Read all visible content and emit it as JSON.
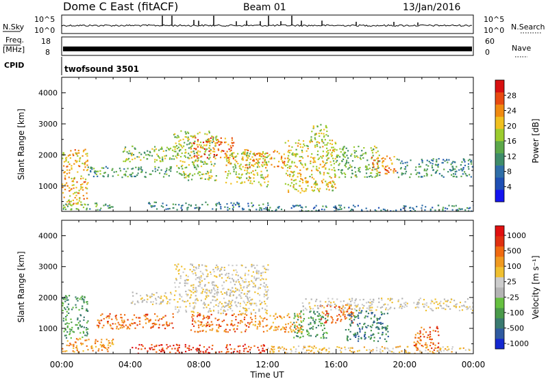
{
  "header": {
    "title": "Dome C East (fitACF)",
    "beam": "Beam 01",
    "date": "13/Jan/2016"
  },
  "panels": {
    "nsky_label": "N.Sky",
    "nsky_ticks": [
      "10^5",
      "10^0"
    ],
    "nsearch_label": "N.Search",
    "freq_label_1": "Freq.",
    "freq_label_2": "[MHz]",
    "freq_ticks": [
      "18",
      "8"
    ],
    "nave_label": "Nave",
    "nave_ticks": [
      "60",
      "0"
    ],
    "cpid_label": "CPID",
    "cpid_value": "twofsound 3501"
  },
  "chart_data": [
    {
      "type": "heatmap",
      "name": "power",
      "xlabel": "Time UT",
      "ylabel": "Slant Range [km]",
      "xlim": [
        0,
        24
      ],
      "ylim": [
        180,
        4500
      ],
      "xticks": [
        "00:00",
        "04:00",
        "08:00",
        "12:00",
        "16:00",
        "20:00",
        "00:00"
      ],
      "yticks": [
        1000,
        2000,
        3000,
        4000
      ],
      "colorbar": {
        "label": "Power [dB]",
        "range": [
          0,
          32
        ],
        "ticks": [
          4,
          8,
          12,
          16,
          20,
          24,
          28
        ],
        "colors": [
          "#1414f0",
          "#1f4fb4",
          "#2f6ea8",
          "#3f8c6a",
          "#5ca84a",
          "#9ccc2e",
          "#f0c020",
          "#f08a10",
          "#e84a10",
          "#d81010"
        ]
      },
      "bands": [
        {
          "t0": 0.0,
          "t1": 1.5,
          "r0": 400,
          "r1": 2200,
          "v": 22
        },
        {
          "t0": 0.0,
          "t1": 3.0,
          "r0": 250,
          "r1": 500,
          "v": 14
        },
        {
          "t0": 1.5,
          "t1": 6.5,
          "r0": 1300,
          "r1": 1650,
          "v": 12
        },
        {
          "t0": 3.5,
          "t1": 6.5,
          "r0": 1800,
          "r1": 2300,
          "v": 16
        },
        {
          "t0": 6.5,
          "t1": 9.0,
          "r0": 1200,
          "r1": 2800,
          "v": 17
        },
        {
          "t0": 7.5,
          "t1": 10.0,
          "r0": 1900,
          "r1": 2600,
          "v": 25
        },
        {
          "t0": 9.5,
          "t1": 12.0,
          "r0": 1000,
          "r1": 2100,
          "v": 18
        },
        {
          "t0": 10.5,
          "t1": 13.0,
          "r0": 1600,
          "r1": 2200,
          "v": 23
        },
        {
          "t0": 13.0,
          "t1": 16.0,
          "r0": 800,
          "r1": 2500,
          "v": 20
        },
        {
          "t0": 16.0,
          "t1": 18.5,
          "r0": 1300,
          "r1": 2300,
          "v": 15
        },
        {
          "t0": 18.0,
          "t1": 19.5,
          "r0": 1400,
          "r1": 2000,
          "v": 24
        },
        {
          "t0": 19.5,
          "t1": 24.0,
          "r0": 1300,
          "r1": 1900,
          "v": 11
        },
        {
          "t0": 5.0,
          "t1": 12.0,
          "r0": 250,
          "r1": 500,
          "v": 10
        },
        {
          "t0": 12.0,
          "t1": 24.0,
          "r0": 200,
          "r1": 400,
          "v": 9
        },
        {
          "t0": 14.5,
          "t1": 15.5,
          "r0": 2300,
          "r1": 3000,
          "v": 18
        }
      ]
    },
    {
      "type": "heatmap",
      "name": "velocity",
      "xlabel": "Time UT",
      "ylabel": "Slant Range [km]",
      "xlim": [
        0,
        24
      ],
      "ylim": [
        180,
        4500
      ],
      "xticks": [
        "00:00",
        "04:00",
        "08:00",
        "12:00",
        "16:00",
        "20:00",
        "00:00"
      ],
      "yticks": [
        1000,
        2000,
        3000,
        4000
      ],
      "colorbar": {
        "label": "Velocity [m s⁻¹]",
        "tick_labels": [
          "1000",
          "500",
          "100",
          "25",
          "-25",
          "-100",
          "-500",
          "-1000"
        ],
        "colors": [
          "#1428d0",
          "#2f5aa0",
          "#3a7a70",
          "#4a9a4a",
          "#66c040",
          "#b4b4b4",
          "#cccccc",
          "#f0c030",
          "#f09a20",
          "#f06a10",
          "#e03010",
          "#e01010"
        ]
      },
      "bands": [
        {
          "t0": 0.0,
          "t1": 3.0,
          "r0": 250,
          "r1": 700,
          "v": 8
        },
        {
          "t0": 0.0,
          "t1": 1.5,
          "r0": 700,
          "r1": 2100,
          "v": 3
        },
        {
          "t0": 2.0,
          "t1": 6.5,
          "r0": 1000,
          "r1": 1500,
          "v": 9
        },
        {
          "t0": 4.0,
          "t1": 6.5,
          "r0": 1800,
          "r1": 2200,
          "v": 6
        },
        {
          "t0": 6.5,
          "t1": 12.0,
          "r0": 1500,
          "r1": 3100,
          "v": 6
        },
        {
          "t0": 7.5,
          "t1": 11.0,
          "r0": 900,
          "r1": 1500,
          "v": 9
        },
        {
          "t0": 11.0,
          "t1": 14.0,
          "r0": 900,
          "r1": 1500,
          "v": 8
        },
        {
          "t0": 13.5,
          "t1": 15.5,
          "r0": 700,
          "r1": 1600,
          "v": 3
        },
        {
          "t0": 15.0,
          "t1": 17.0,
          "r0": 1200,
          "r1": 1800,
          "v": 9
        },
        {
          "t0": 16.5,
          "t1": 19.0,
          "r0": 600,
          "r1": 1600,
          "v": 2
        },
        {
          "t0": 14.0,
          "t1": 24.0,
          "r0": 1600,
          "r1": 2000,
          "v": 6
        },
        {
          "t0": 20.5,
          "t1": 22.0,
          "r0": 300,
          "r1": 1100,
          "v": 9
        },
        {
          "t0": 4.0,
          "t1": 12.0,
          "r0": 200,
          "r1": 500,
          "v": 10
        },
        {
          "t0": 12.0,
          "t1": 24.0,
          "r0": 200,
          "r1": 450,
          "v": 7
        }
      ]
    }
  ]
}
